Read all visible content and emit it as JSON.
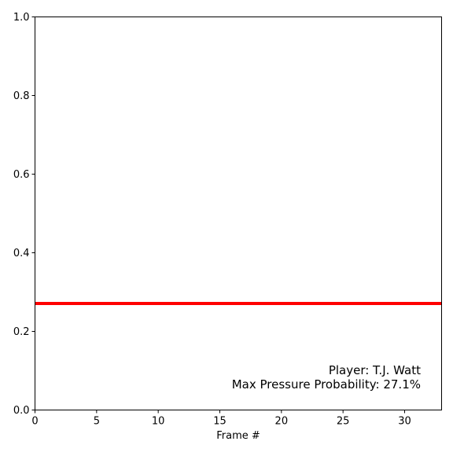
{
  "chart_data": {
    "type": "line",
    "title": "",
    "xlabel": "Frame #",
    "ylabel": "",
    "xlim": [
      0,
      33
    ],
    "ylim": [
      0,
      1.0
    ],
    "x_ticks": [
      0,
      5,
      10,
      15,
      20,
      25,
      30
    ],
    "y_ticks": [
      0.0,
      0.2,
      0.4,
      0.6,
      0.8,
      1.0
    ],
    "x_tick_labels": [
      "0",
      "5",
      "10",
      "15",
      "20",
      "25",
      "30"
    ],
    "y_tick_labels": [
      "0.0",
      "0.2",
      "0.4",
      "0.6",
      "0.8",
      "1.0"
    ],
    "grid": false,
    "series": [
      {
        "color": "#ff0000",
        "x": [
          0,
          33
        ],
        "y": [
          0.271,
          0.271
        ]
      }
    ],
    "annotation": {
      "player_line": "Player: T.J. Watt",
      "max_line": "Max Pressure Probability: 27.1%",
      "placement": "bottom-right"
    }
  }
}
